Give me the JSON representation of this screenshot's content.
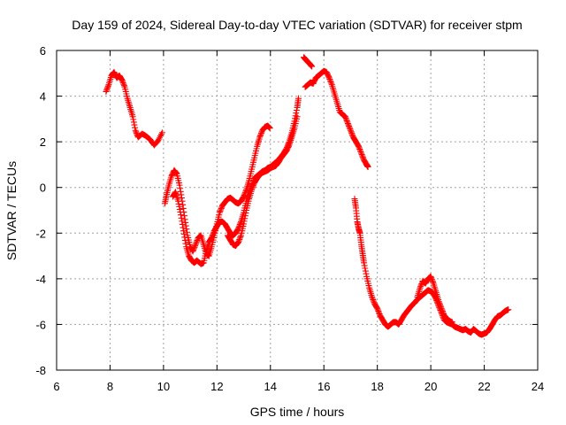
{
  "chart_data": {
    "type": "scatter",
    "title": "Day 159 of 2024, Sidereal Day-to-day VTEC variation (SDTVAR) for receiver stpm",
    "xlabel": "GPS time / hours",
    "ylabel": "SDTVAR / TECUs",
    "xlim": [
      6,
      24
    ],
    "ylim": [
      -8,
      6
    ],
    "xticks": [
      6,
      8,
      10,
      12,
      14,
      16,
      18,
      20,
      22,
      24
    ],
    "yticks": [
      -8,
      -6,
      -4,
      -2,
      0,
      2,
      4,
      6
    ],
    "grid": true,
    "marker": "plus",
    "color": "#ff0000",
    "series": [
      {
        "name": "segment-1",
        "points": [
          [
            7.85,
            4.2
          ],
          [
            7.95,
            4.5
          ],
          [
            8.05,
            4.9
          ],
          [
            8.15,
            5.05
          ],
          [
            8.25,
            4.8
          ],
          [
            8.35,
            4.9
          ],
          [
            8.45,
            4.7
          ],
          [
            8.55,
            4.4
          ],
          [
            8.65,
            3.9
          ],
          [
            8.75,
            3.5
          ],
          [
            8.85,
            3.1
          ],
          [
            8.95,
            2.5
          ],
          [
            9.05,
            2.2
          ],
          [
            9.2,
            2.35
          ],
          [
            9.35,
            2.25
          ],
          [
            9.5,
            2.1
          ],
          [
            9.65,
            1.85
          ],
          [
            9.8,
            2.05
          ],
          [
            9.95,
            2.4
          ]
        ]
      },
      {
        "name": "segment-2",
        "points": [
          [
            10.05,
            -0.7
          ],
          [
            10.12,
            -0.3
          ],
          [
            10.2,
            0.1
          ],
          [
            10.3,
            0.5
          ],
          [
            10.4,
            0.75
          ],
          [
            10.5,
            0.6
          ],
          [
            10.6,
            0.1
          ],
          [
            10.7,
            -0.6
          ],
          [
            10.8,
            -1.4
          ],
          [
            10.9,
            -2.1
          ],
          [
            11.0,
            -2.6
          ],
          [
            11.1,
            -2.8
          ],
          [
            11.2,
            -2.5
          ],
          [
            11.3,
            -2.2
          ],
          [
            11.4,
            -2.1
          ],
          [
            11.5,
            -2.5
          ],
          [
            11.6,
            -2.9
          ],
          [
            11.7,
            -3.0
          ],
          [
            11.8,
            -2.6
          ],
          [
            11.9,
            -2.1
          ],
          [
            12.0,
            -1.6
          ],
          [
            12.1,
            -1.1
          ],
          [
            12.2,
            -0.8
          ],
          [
            12.3,
            -0.65
          ],
          [
            12.4,
            -0.5
          ],
          [
            12.5,
            -0.45
          ],
          [
            12.6,
            -0.55
          ],
          [
            12.7,
            -0.65
          ],
          [
            12.8,
            -0.7
          ],
          [
            12.9,
            -0.6
          ],
          [
            13.0,
            -0.4
          ],
          [
            13.1,
            -0.1
          ],
          [
            13.2,
            0.3
          ],
          [
            13.3,
            0.8
          ],
          [
            13.4,
            1.3
          ],
          [
            13.5,
            1.8
          ],
          [
            13.6,
            2.2
          ],
          [
            13.7,
            2.5
          ],
          [
            13.8,
            2.65
          ],
          [
            13.9,
            2.7
          ],
          [
            13.98,
            2.6
          ]
        ]
      },
      {
        "name": "segment-3",
        "points": [
          [
            10.35,
            -0.4
          ],
          [
            10.45,
            -0.2
          ],
          [
            10.55,
            -0.6
          ],
          [
            10.65,
            -1.2
          ],
          [
            10.75,
            -1.9
          ],
          [
            10.85,
            -2.6
          ],
          [
            10.95,
            -3.0
          ],
          [
            11.05,
            -3.2
          ],
          [
            11.15,
            -3.3
          ],
          [
            11.25,
            -3.2
          ],
          [
            11.4,
            -3.35
          ],
          [
            11.5,
            -3.3
          ],
          [
            11.6,
            -2.8
          ],
          [
            11.7,
            -2.4
          ],
          [
            11.8,
            -2.2
          ],
          [
            11.9,
            -1.9
          ],
          [
            12.0,
            -1.7
          ],
          [
            12.1,
            -1.5
          ],
          [
            12.2,
            -1.5
          ],
          [
            12.3,
            -1.6
          ],
          [
            12.4,
            -1.8
          ],
          [
            12.5,
            -2.0
          ],
          [
            12.6,
            -2.1
          ],
          [
            12.7,
            -2.0
          ],
          [
            12.8,
            -1.8
          ],
          [
            12.9,
            -1.5
          ],
          [
            13.0,
            -1.1
          ],
          [
            13.1,
            -0.6
          ],
          [
            13.2,
            -0.2
          ],
          [
            13.3,
            0.1
          ],
          [
            13.4,
            0.4
          ],
          [
            13.5,
            0.5
          ],
          [
            13.6,
            0.6
          ],
          [
            13.7,
            0.7
          ],
          [
            13.8,
            0.75
          ],
          [
            13.9,
            0.85
          ],
          [
            14.0,
            0.9
          ],
          [
            14.1,
            1.0
          ],
          [
            14.2,
            1.1
          ],
          [
            14.3,
            1.2
          ],
          [
            14.4,
            1.35
          ],
          [
            14.5,
            1.5
          ],
          [
            14.6,
            1.7
          ],
          [
            14.7,
            2.0
          ],
          [
            14.8,
            2.4
          ],
          [
            14.9,
            2.9
          ],
          [
            15.0,
            3.5
          ],
          [
            15.05,
            3.9
          ]
        ]
      },
      {
        "name": "segment-4",
        "points": [
          [
            12.4,
            -2.1
          ],
          [
            12.5,
            -2.3
          ],
          [
            12.6,
            -2.5
          ],
          [
            12.7,
            -2.55
          ],
          [
            12.8,
            -2.4
          ],
          [
            12.9,
            -2.1
          ],
          [
            13.0,
            -1.6
          ],
          [
            13.1,
            -1.0
          ],
          [
            13.2,
            -0.5
          ],
          [
            13.3,
            -0.1
          ],
          [
            13.4,
            0.2
          ],
          [
            13.5,
            0.4
          ],
          [
            13.6,
            0.55
          ],
          [
            13.7,
            0.65
          ],
          [
            13.8,
            0.7
          ],
          [
            13.9,
            0.75
          ],
          [
            14.0,
            0.85
          ],
          [
            14.1,
            0.9
          ],
          [
            14.2,
            0.95
          ],
          [
            14.3,
            1.1
          ],
          [
            14.4,
            1.3
          ],
          [
            14.5,
            1.45
          ],
          [
            14.6,
            1.6
          ],
          [
            14.7,
            1.85
          ],
          [
            14.8,
            2.2
          ],
          [
            14.9,
            2.6
          ],
          [
            15.0,
            3.1
          ]
        ]
      },
      {
        "name": "segment-5",
        "points": [
          [
            15.25,
            5.7
          ],
          [
            15.32,
            5.6
          ],
          [
            15.4,
            5.5
          ],
          [
            15.48,
            5.4
          ],
          [
            15.55,
            5.3
          ]
        ]
      },
      {
        "name": "segment-6",
        "points": [
          [
            15.3,
            4.4
          ],
          [
            15.4,
            4.5
          ],
          [
            15.5,
            4.6
          ],
          [
            15.6,
            4.55
          ],
          [
            15.7,
            4.8
          ],
          [
            15.8,
            4.9
          ],
          [
            15.9,
            5.0
          ],
          [
            16.0,
            5.1
          ],
          [
            16.1,
            5.05
          ],
          [
            16.2,
            4.8
          ],
          [
            16.3,
            4.5
          ],
          [
            16.4,
            4.1
          ],
          [
            16.5,
            3.7
          ],
          [
            16.6,
            3.3
          ],
          [
            16.7,
            3.2
          ],
          [
            16.8,
            3.1
          ],
          [
            16.9,
            2.8
          ],
          [
            17.0,
            2.5
          ],
          [
            17.1,
            2.2
          ],
          [
            17.2,
            2.0
          ],
          [
            17.3,
            1.8
          ],
          [
            17.4,
            1.5
          ],
          [
            17.5,
            1.2
          ],
          [
            17.6,
            1.0
          ],
          [
            17.65,
            0.9
          ]
        ]
      },
      {
        "name": "segment-7",
        "points": [
          [
            17.15,
            -0.5
          ],
          [
            17.2,
            -0.9
          ],
          [
            17.25,
            -1.5
          ],
          [
            17.3,
            -1.8
          ],
          [
            17.35,
            -2.0
          ],
          [
            17.4,
            -2.5
          ],
          [
            17.45,
            -2.9
          ],
          [
            17.5,
            -3.3
          ],
          [
            17.6,
            -3.9
          ],
          [
            17.7,
            -4.4
          ],
          [
            17.8,
            -4.8
          ],
          [
            17.9,
            -5.1
          ],
          [
            18.0,
            -5.3
          ],
          [
            18.1,
            -5.6
          ],
          [
            18.2,
            -5.8
          ],
          [
            18.3,
            -6.0
          ],
          [
            18.4,
            -6.1
          ],
          [
            18.5,
            -6.0
          ],
          [
            18.6,
            -5.9
          ],
          [
            18.7,
            -5.9
          ],
          [
            18.8,
            -6.0
          ],
          [
            18.9,
            -5.8
          ],
          [
            19.0,
            -5.6
          ],
          [
            19.1,
            -5.45
          ],
          [
            19.2,
            -5.3
          ],
          [
            19.3,
            -5.15
          ],
          [
            19.4,
            -5.05
          ],
          [
            19.5,
            -4.9
          ],
          [
            19.6,
            -4.8
          ],
          [
            19.7,
            -4.7
          ],
          [
            19.8,
            -4.6
          ],
          [
            19.9,
            -4.5
          ],
          [
            20.0,
            -4.55
          ],
          [
            20.1,
            -4.65
          ],
          [
            20.2,
            -4.9
          ],
          [
            20.3,
            -5.2
          ],
          [
            20.4,
            -5.5
          ],
          [
            20.5,
            -5.8
          ],
          [
            20.6,
            -5.9
          ],
          [
            20.7,
            -5.95
          ],
          [
            20.8,
            -6.0
          ],
          [
            20.9,
            -6.1
          ],
          [
            21.0,
            -6.15
          ],
          [
            21.1,
            -6.2
          ],
          [
            21.2,
            -6.25
          ],
          [
            21.3,
            -6.2
          ],
          [
            21.4,
            -6.3
          ],
          [
            21.5,
            -6.35
          ],
          [
            21.6,
            -6.2
          ],
          [
            21.7,
            -6.3
          ],
          [
            21.8,
            -6.4
          ],
          [
            21.9,
            -6.45
          ],
          [
            22.0,
            -6.4
          ],
          [
            22.1,
            -6.35
          ],
          [
            22.2,
            -6.2
          ],
          [
            22.3,
            -6.0
          ],
          [
            22.4,
            -5.8
          ],
          [
            22.5,
            -5.65
          ],
          [
            22.6,
            -5.6
          ],
          [
            22.7,
            -5.5
          ],
          [
            22.8,
            -5.4
          ],
          [
            22.9,
            -5.35
          ]
        ]
      },
      {
        "name": "segment-8",
        "points": [
          [
            19.5,
            -4.8
          ],
          [
            19.6,
            -4.4
          ],
          [
            19.7,
            -4.1
          ],
          [
            19.8,
            -4.2
          ],
          [
            19.9,
            -4.0
          ],
          [
            20.0,
            -3.9
          ],
          [
            20.1,
            -4.2
          ],
          [
            20.2,
            -4.6
          ],
          [
            20.3,
            -5.0
          ],
          [
            20.4,
            -5.3
          ],
          [
            20.5,
            -5.6
          ],
          [
            20.6,
            -5.75
          ],
          [
            20.7,
            -5.85
          ],
          [
            20.8,
            -5.9
          ]
        ]
      }
    ]
  }
}
